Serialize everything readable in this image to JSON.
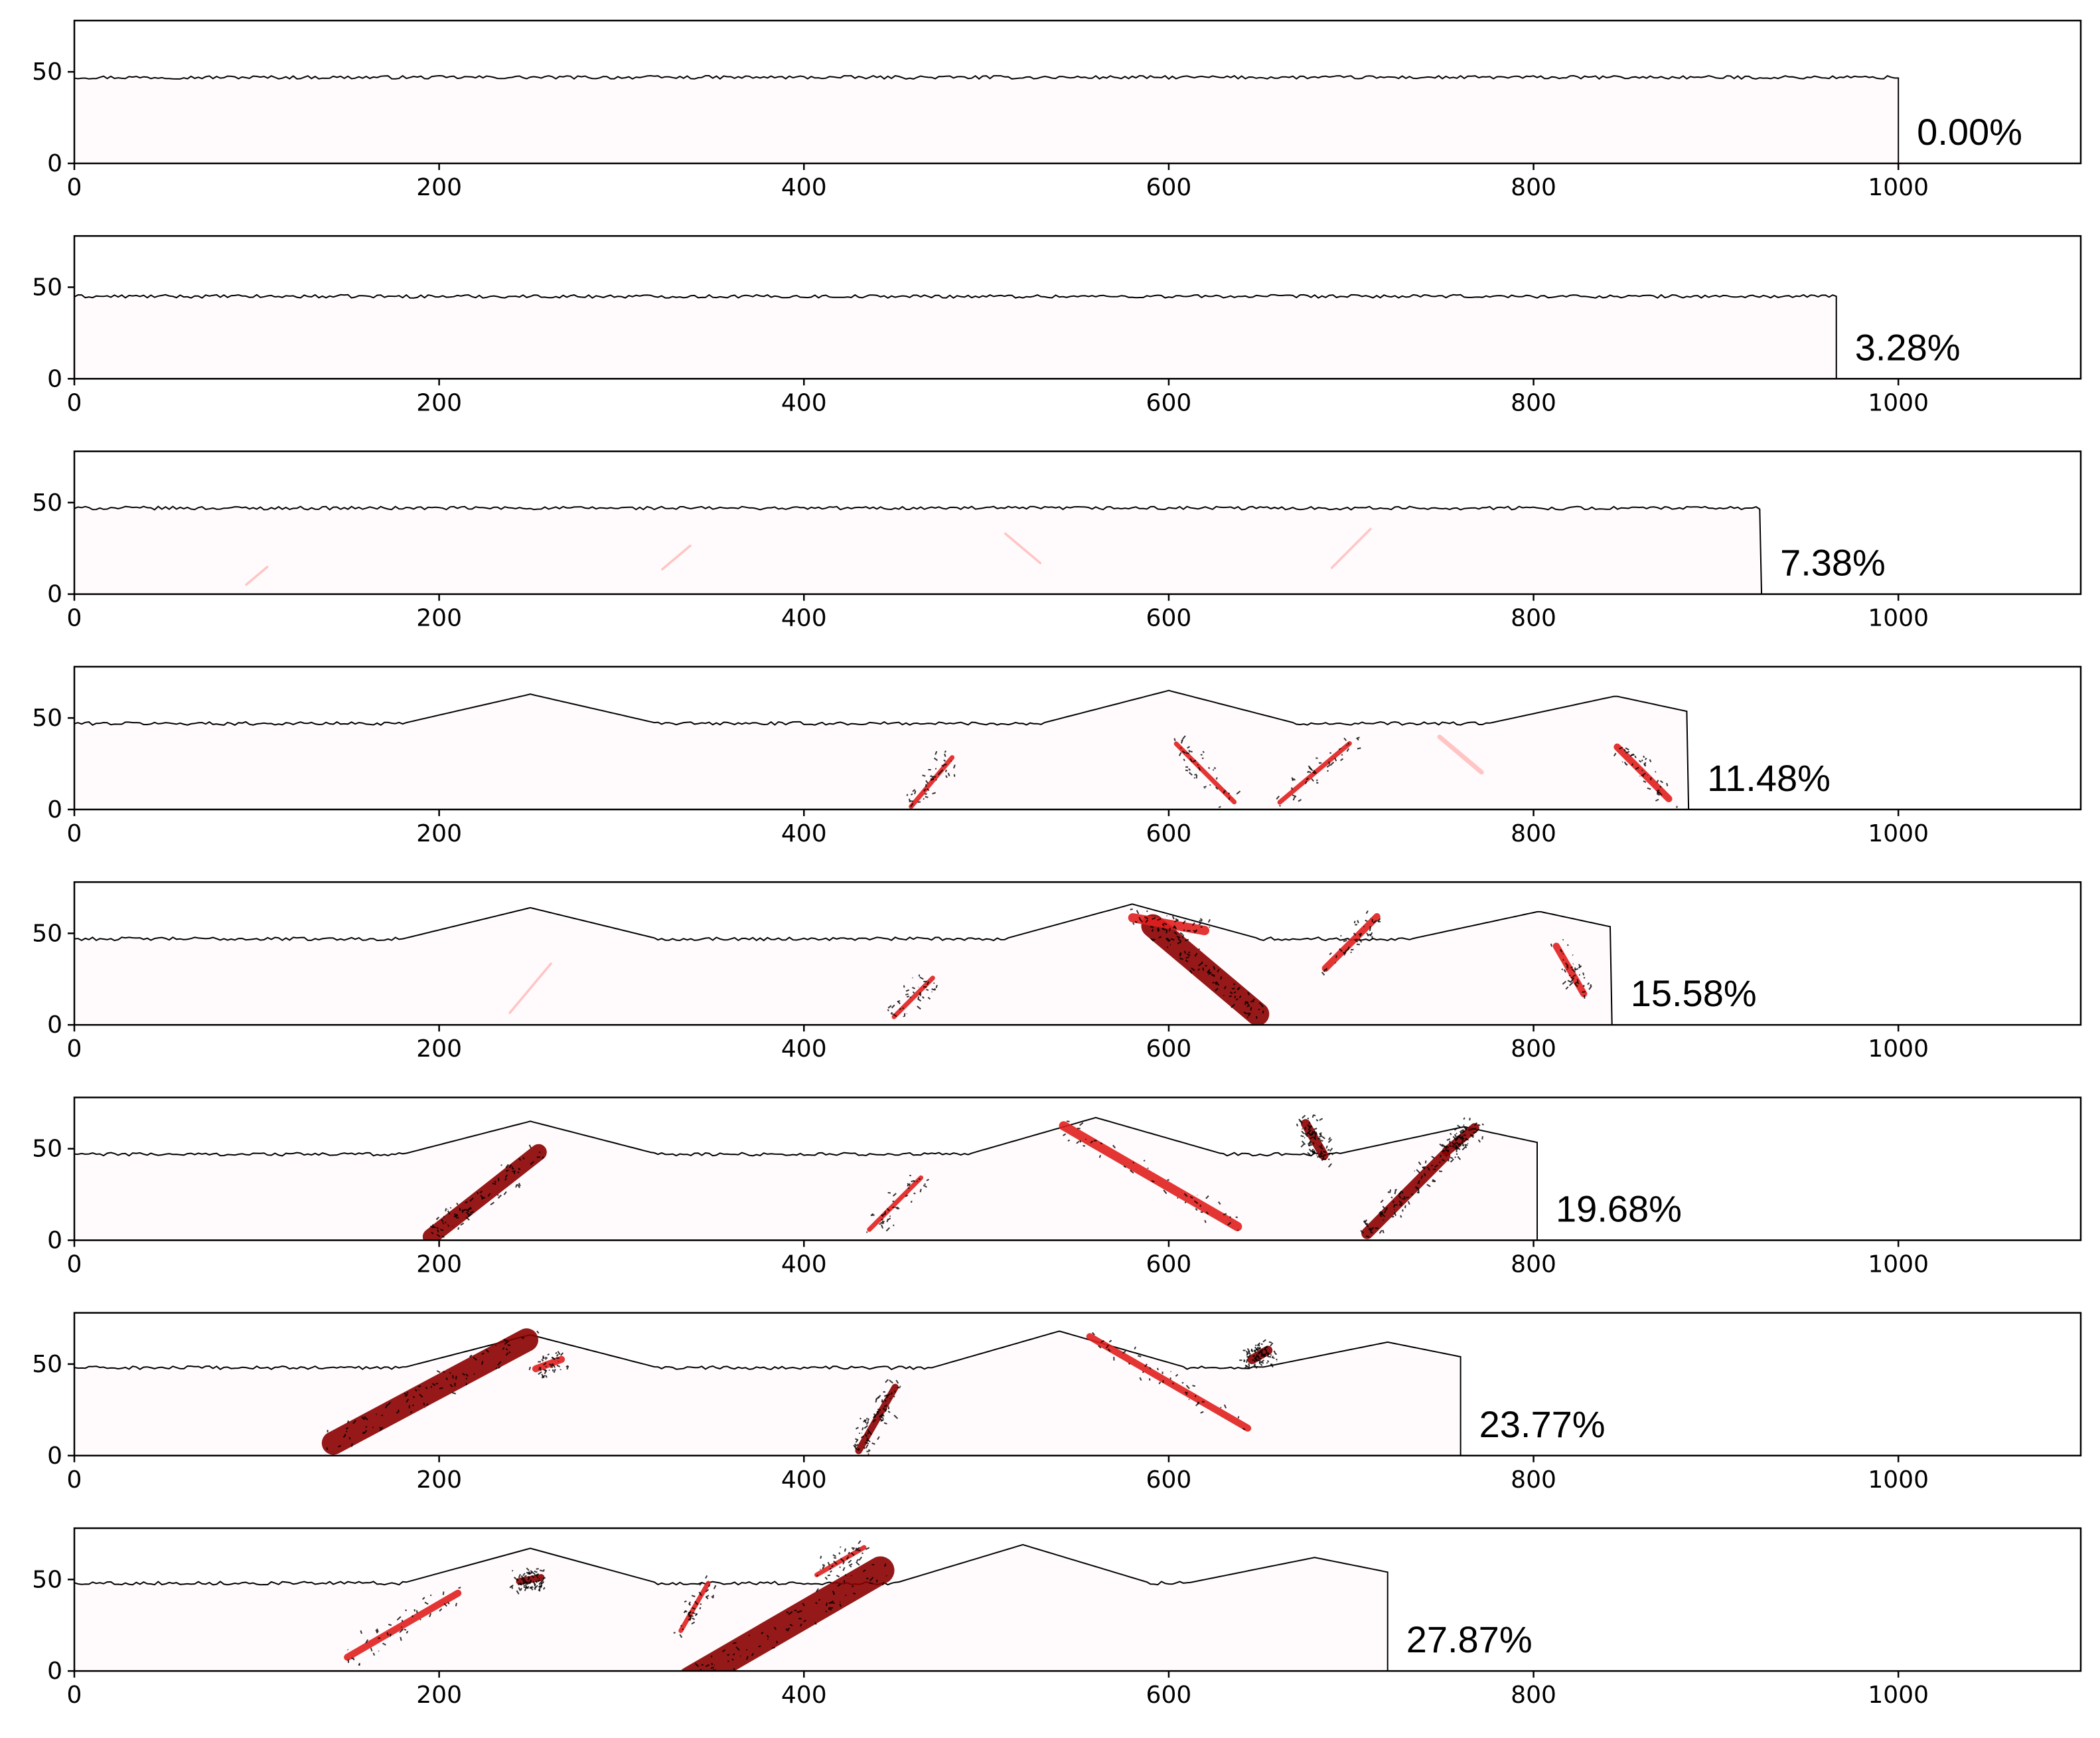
{
  "chart_data": [
    {
      "type": "heatmap",
      "xlim": [
        0,
        1100
      ],
      "ylim": [
        0,
        78
      ],
      "xticks": [
        0,
        200,
        400,
        600,
        800,
        1000
      ],
      "yticks": [
        0,
        50
      ],
      "annotation": "0.00%",
      "front_x": 1000,
      "surface_height": 47,
      "grid": false
    },
    {
      "type": "heatmap",
      "xlim": [
        0,
        1100
      ],
      "ylim": [
        0,
        78
      ],
      "xticks": [
        0,
        200,
        400,
        600,
        800,
        1000
      ],
      "yticks": [
        0,
        50
      ],
      "annotation": "3.28%",
      "front_x": 966,
      "surface_height": 45,
      "grid": false
    },
    {
      "type": "heatmap",
      "xlim": [
        0,
        1100
      ],
      "ylim": [
        0,
        78
      ],
      "xticks": [
        0,
        200,
        400,
        600,
        800,
        1000
      ],
      "yticks": [
        0,
        50
      ],
      "annotation": "7.38%",
      "front_x": 925,
      "surface_height": 47,
      "grid": false
    },
    {
      "type": "heatmap",
      "xlim": [
        0,
        1100
      ],
      "ylim": [
        0,
        78
      ],
      "xticks": [
        0,
        200,
        400,
        600,
        800,
        1000
      ],
      "yticks": [
        0,
        50
      ],
      "annotation": "11.48%",
      "front_x": 885,
      "surface_height": 47,
      "grid": false
    },
    {
      "type": "heatmap",
      "xlim": [
        0,
        1100
      ],
      "ylim": [
        0,
        78
      ],
      "xticks": [
        0,
        200,
        400,
        600,
        800,
        1000
      ],
      "yticks": [
        0,
        50
      ],
      "annotation": "15.58%",
      "front_x": 843,
      "surface_height": 47,
      "grid": false
    },
    {
      "type": "heatmap",
      "xlim": [
        0,
        1100
      ],
      "ylim": [
        0,
        78
      ],
      "xticks": [
        0,
        200,
        400,
        600,
        800,
        1000
      ],
      "yticks": [
        0,
        50
      ],
      "annotation": "19.68%",
      "front_x": 802,
      "surface_height": 47,
      "grid": false
    },
    {
      "type": "heatmap",
      "xlim": [
        0,
        1100
      ],
      "ylim": [
        0,
        78
      ],
      "xticks": [
        0,
        200,
        400,
        600,
        800,
        1000
      ],
      "yticks": [
        0,
        50
      ],
      "annotation": "23.77%",
      "front_x": 760,
      "surface_height": 48,
      "grid": false
    },
    {
      "type": "heatmap",
      "xlim": [
        0,
        1100
      ],
      "ylim": [
        0,
        78
      ],
      "xticks": [
        0,
        200,
        400,
        600,
        800,
        1000
      ],
      "yticks": [
        0,
        50
      ],
      "annotation": "27.87%",
      "front_x": 720,
      "surface_height": 48,
      "grid": false
    }
  ],
  "colors": {
    "frame": "#000000",
    "domain_fill": "#fffafb",
    "strain_light": "#ff9a9a",
    "strain_mid": "#e0201e",
    "strain_dark": "#8b0000",
    "crack": "#000000"
  }
}
